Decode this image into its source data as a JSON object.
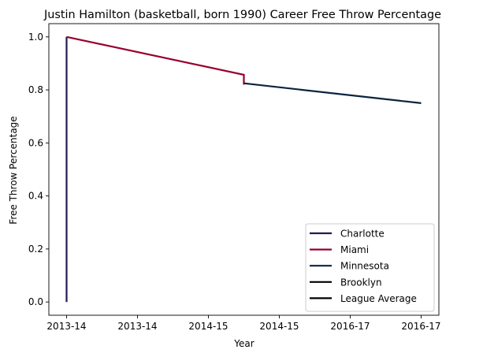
{
  "chart_data": {
    "type": "line",
    "title": "Justin Hamilton (basketball, born 1990) Career Free Throw Percentage",
    "xlabel": "Year",
    "ylabel": "Free Throw Percentage",
    "x_tick_labels": [
      "2013-14",
      "2013-14",
      "2014-15",
      "2014-15",
      "2016-17",
      "2016-17"
    ],
    "x_tick_positions": [
      0,
      0.4,
      0.8,
      1.2,
      1.6,
      2.0
    ],
    "xlim": [
      -0.1,
      2.1
    ],
    "ylim": [
      -0.05,
      1.05
    ],
    "y_ticks": [
      0.0,
      0.2,
      0.4,
      0.6,
      0.8,
      1.0
    ],
    "y_tick_labels": [
      "0.0",
      "0.2",
      "0.4",
      "0.6",
      "0.8",
      "1.0"
    ],
    "grid": false,
    "legend_position": "lower right",
    "series": [
      {
        "name": "Charlotte",
        "color": "#201a52",
        "x": [
          0,
          0
        ],
        "y": [
          0.0,
          1.0
        ]
      },
      {
        "name": "Miami",
        "color": "#98002e",
        "x": [
          0,
          1.0,
          1.0
        ],
        "y": [
          1.0,
          0.857,
          0.82
        ]
      },
      {
        "name": "Minnesota",
        "color": "#0c2340",
        "x": [
          1.0,
          2.0
        ],
        "y": [
          0.825,
          0.75
        ]
      },
      {
        "name": "Brooklyn",
        "color": "#000000",
        "x": [],
        "y": []
      },
      {
        "name": "League Average",
        "color": "#000000",
        "x": [],
        "y": []
      }
    ]
  }
}
